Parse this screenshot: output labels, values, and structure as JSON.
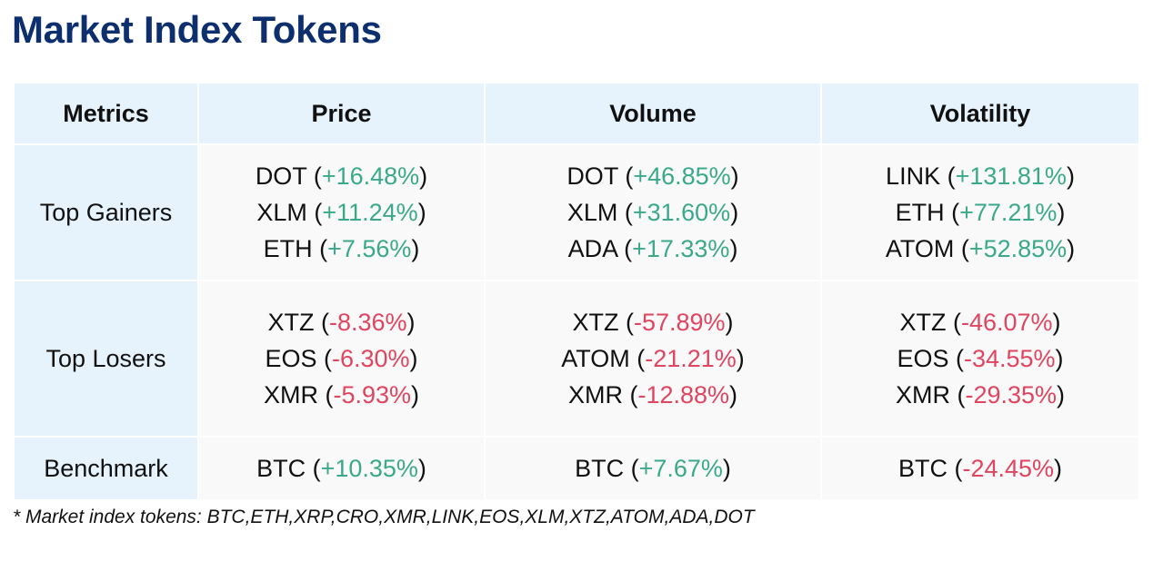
{
  "title": "Market Index Tokens",
  "colors": {
    "title": "#0d2f6e",
    "header_bg": "#e6f2fc",
    "cell_bg": "#f9f9f9",
    "positive": "#3aa98a",
    "negative": "#e0445f"
  },
  "table": {
    "headers": [
      "Metrics",
      "Price",
      "Volume",
      "Volatility"
    ],
    "rows": [
      {
        "label": "Top Gainers",
        "cells": [
          [
            {
              "token": "DOT",
              "change": "+16.48%"
            },
            {
              "token": "XLM",
              "change": "+11.24%"
            },
            {
              "token": "ETH",
              "change": "+7.56%"
            }
          ],
          [
            {
              "token": "DOT",
              "change": "+46.85%"
            },
            {
              "token": "XLM",
              "change": "+31.60%"
            },
            {
              "token": "ADA",
              "change": "+17.33%"
            }
          ],
          [
            {
              "token": "LINK",
              "change": "+131.81%"
            },
            {
              "token": "ETH",
              "change": "+77.21%"
            },
            {
              "token": "ATOM",
              "change": "+52.85%"
            }
          ]
        ]
      },
      {
        "label": "Top Losers",
        "cells": [
          [
            {
              "token": "XTZ",
              "change": "-8.36%"
            },
            {
              "token": "EOS",
              "change": "-6.30%"
            },
            {
              "token": "XMR",
              "change": "-5.93%"
            }
          ],
          [
            {
              "token": "XTZ",
              "change": "-57.89%"
            },
            {
              "token": "ATOM",
              "change": "-21.21%"
            },
            {
              "token": "XMR",
              "change": "-12.88%"
            }
          ],
          [
            {
              "token": "XTZ",
              "change": "-46.07%"
            },
            {
              "token": "EOS",
              "change": "-34.55%"
            },
            {
              "token": "XMR",
              "change": "-29.35%"
            }
          ]
        ]
      },
      {
        "label": "Benchmark",
        "cells": [
          [
            {
              "token": "BTC",
              "change": "+10.35%"
            }
          ],
          [
            {
              "token": "BTC",
              "change": "+7.67%"
            }
          ],
          [
            {
              "token": "BTC",
              "change": "-24.45%"
            }
          ]
        ]
      }
    ]
  },
  "footnote": "* Market index tokens: BTC,ETH,XRP,CRO,XMR,LINK,EOS,XLM,XTZ,ATOM,ADA,DOT"
}
